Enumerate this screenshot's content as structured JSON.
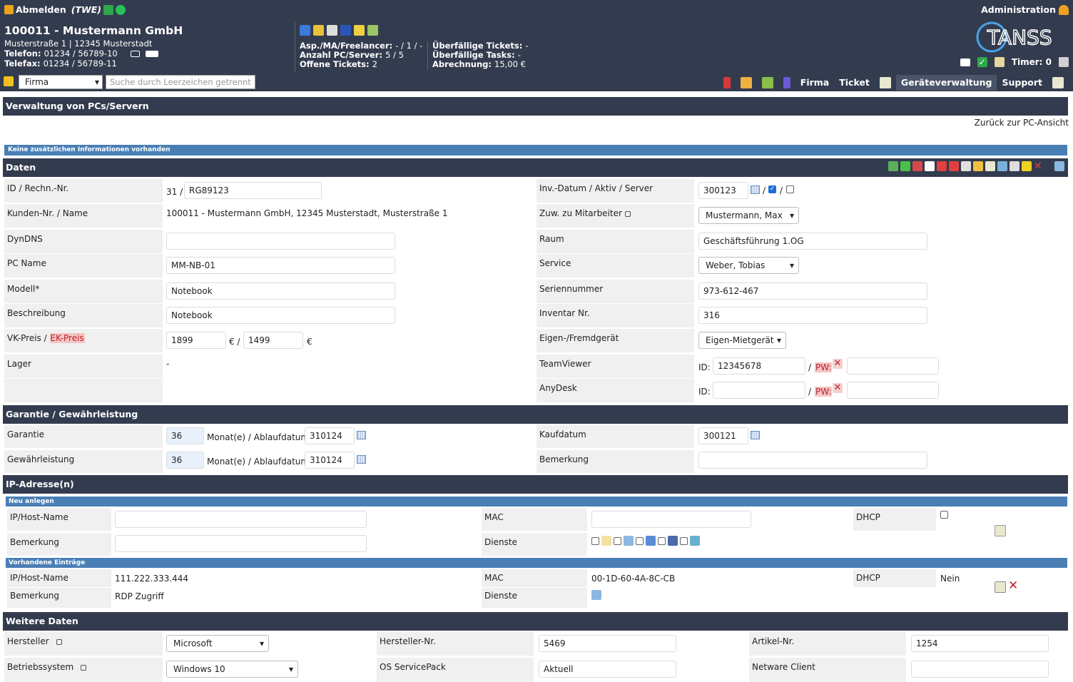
{
  "header": {
    "logout_label": "Abmelden",
    "user_code": "(TWE)",
    "admin_label": "Administration",
    "customer_title": "100011 - Mustermann GmbH",
    "customer_address": "Musterstraße 1 | 12345 Musterstadt",
    "phone_label": "Telefon:",
    "phone_value": "01234 / 56789-10",
    "fax_label": "Telefax:",
    "fax_value": "01234 / 56789-11",
    "stat1_label": "Asp./MA/Freelancer:",
    "stat1_value": "- / 1 / -",
    "stat2_label": "Anzahl PC/Server:",
    "stat2_value": "5 / 5",
    "stat3_label": "Offene Tickets:",
    "stat3_value": "2",
    "stat4_label": "Überfällige Tickets:",
    "stat4_value": "-",
    "stat5_label": "Überfällige Tasks:",
    "stat5_value": "-",
    "stat6_label": "Abrechnung:",
    "stat6_value": "15,00 €",
    "logo_text": "TANSS",
    "timer_label": "Timer: 0"
  },
  "nav": {
    "firma_select": "Firma",
    "search_placeholder": "Suche durch Leerzeichen getrennt",
    "items": [
      "Firma",
      "Ticket",
      "Geräteverwaltung",
      "Support"
    ]
  },
  "page": {
    "title": "Verwaltung von PCs/Servern",
    "back_link": "Zurück zur PC-Ansicht",
    "info": "Keine zusätzlichen Informationen vorhanden"
  },
  "daten": {
    "header": "Daten",
    "id_label": "ID / Rechn.-Nr.",
    "id_value": "31 /",
    "rechn_value": "RG89123",
    "kunden_label": "Kunden-Nr. / Name",
    "kunden_value": "100011 - Mustermann GmbH, 12345 Musterstadt, Musterstraße 1",
    "dyndns_label": "DynDNS",
    "dyndns_value": "",
    "pcname_label": "PC Name",
    "pcname_value": "MM-NB-01",
    "modell_label": "Modell*",
    "modell_value": "Notebook",
    "beschreibung_label": "Beschreibung",
    "beschreibung_value": "Notebook",
    "vkpreis_label": "VK-Preis /",
    "ekpreis_label": "EK-Preis",
    "vk_value": "1899",
    "ek_value": "1499",
    "euro_sep": "€ /",
    "euro": "€",
    "lager_label": "Lager",
    "lager_value": "-",
    "invdatum_label": "Inv.-Datum / Aktiv / Server",
    "invdatum_value": "300123",
    "slash": "/",
    "zuw_label": "Zuw. zu Mitarbeiter",
    "zuw_value": "Mustermann, Max",
    "raum_label": "Raum",
    "raum_value": "Geschäftsführung 1.OG",
    "service_label": "Service",
    "service_value": "Weber, Tobias",
    "serien_label": "Seriennummer",
    "serien_value": "973-612-467",
    "inventar_label": "Inventar Nr.",
    "inventar_value": "316",
    "eigen_label": "Eigen-/Fremdgerät",
    "eigen_value": "Eigen-Mietgerät",
    "teamviewer_label": "TeamViewer",
    "tv_id_label": "ID:",
    "tv_id_value": "12345678",
    "pw_label": "PW:",
    "pw_sep": "/",
    "anydesk_label": "AnyDesk",
    "ad_id_label": "ID:"
  },
  "garantie": {
    "header": "Garantie / Gewährleistung",
    "garantie_label": "Garantie",
    "garantie_months": "36",
    "months_label": "Monat(e) / Ablaufdatum:",
    "garantie_date": "310124",
    "gewaehr_label": "Gewährleistung",
    "gewaehr_months": "36",
    "gewaehr_date": "310124",
    "kaufdatum_label": "Kaufdatum",
    "kaufdatum_value": "300121",
    "bemerkung_label": "Bemerkung"
  },
  "ip": {
    "header": "IP-Adresse(n)",
    "new_header": "Neu anlegen",
    "host_label": "IP/Host-Name",
    "mac_label": "MAC",
    "dhcp_label": "DHCP",
    "bemerkung_label": "Bemerkung",
    "dienste_label": "Dienste",
    "existing_header": "Vorhandene Einträge",
    "existing_host": "111.222.333.444",
    "existing_mac": "00-1D-60-4A-8C-CB",
    "existing_dhcp": "Nein",
    "existing_bemerkung": "RDP Zugriff"
  },
  "weitere": {
    "header": "Weitere Daten",
    "hersteller_label": "Hersteller",
    "hersteller_value": "Microsoft",
    "herstnr_label": "Hersteller-Nr.",
    "herstnr_value": "5469",
    "artikel_label": "Artikel-Nr.",
    "artikel_value": "1254",
    "os_label": "Betriebssystem",
    "os_value": "Windows 10",
    "sp_label": "OS ServicePack",
    "sp_value": "Aktuell",
    "netware_label": "Netware Client"
  },
  "colors": {
    "header_bg": "#333c4e",
    "subheader_bg": "#4a7fb5",
    "label_bg": "#f0f0f0",
    "warning": "#c0202a"
  }
}
